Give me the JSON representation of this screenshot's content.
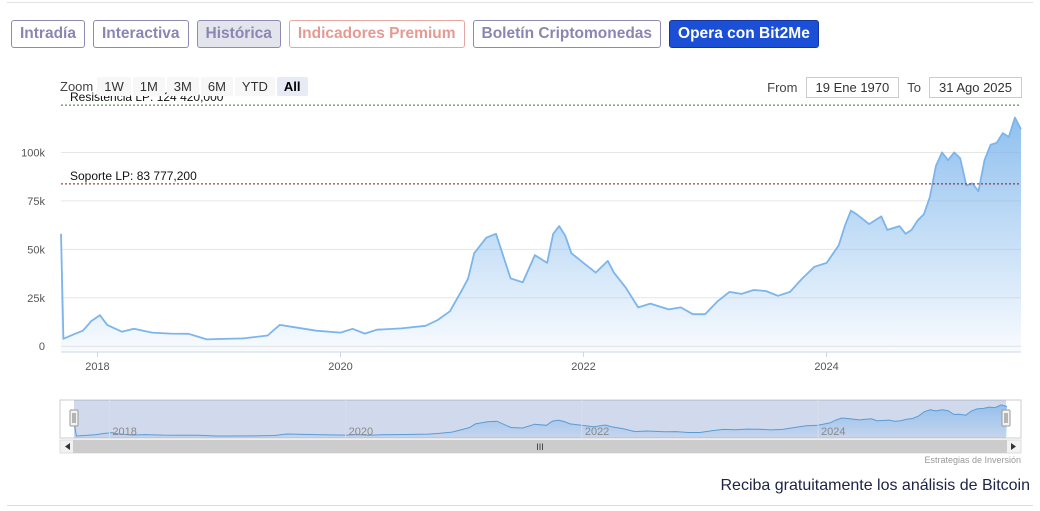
{
  "tabs": [
    {
      "label": "Intradía",
      "style": "normal"
    },
    {
      "label": "Interactiva",
      "style": "normal"
    },
    {
      "label": "Histórica",
      "style": "active"
    },
    {
      "label": "Indicadores Premium",
      "style": "premium"
    },
    {
      "label": "Boletín Criptomonedas",
      "style": "normal"
    },
    {
      "label": "Opera con Bit2Me",
      "style": "cta"
    }
  ],
  "range_selector": {
    "zoom_label": "Zoom",
    "buttons": [
      "1W",
      "1M",
      "3M",
      "6M",
      "YTD",
      "All"
    ],
    "selected": "All",
    "from_label": "From",
    "from_value": "19 Ene 1970",
    "to_label": "To",
    "to_value": "31 Ago 2025"
  },
  "credits": "Estrategias de Inversión",
  "promo_text": "Reciba gratuitamente los análisis de Bitcoin",
  "colors": {
    "line": "#7cb5ec",
    "resistance": "#2a7a2a",
    "support": "#8b1a1a",
    "cta": "#1a4fd6"
  },
  "chart_data": {
    "type": "area",
    "x_axis": {
      "ticks": [
        "2018",
        "2020",
        "2022",
        "2024"
      ],
      "range": [
        2017.7,
        2025.6
      ]
    },
    "y_axis": {
      "ticks": [
        "0",
        "25k",
        "50k",
        "75k",
        "100k"
      ],
      "tick_values": [
        0,
        25000,
        50000,
        75000,
        100000
      ],
      "range": [
        -3000,
        125000
      ]
    },
    "grid": true,
    "series": [
      {
        "x": [
          2017.7,
          2017.72,
          2017.8,
          2017.88,
          2017.95,
          2018.02,
          2018.08,
          2018.2,
          2018.3,
          2018.45,
          2018.6,
          2018.75,
          2018.9,
          2019.0,
          2019.2,
          2019.4,
          2019.5,
          2019.6,
          2019.8,
          2020.0,
          2020.1,
          2020.2,
          2020.3,
          2020.5,
          2020.7,
          2020.8,
          2020.9,
          2021.0,
          2021.05,
          2021.1,
          2021.2,
          2021.28,
          2021.4,
          2021.5,
          2021.55,
          2021.6,
          2021.7,
          2021.75,
          2021.8,
          2021.85,
          2021.9,
          2022.0,
          2022.1,
          2022.2,
          2022.25,
          2022.35,
          2022.45,
          2022.55,
          2022.7,
          2022.8,
          2022.9,
          2023.0,
          2023.1,
          2023.2,
          2023.3,
          2023.4,
          2023.5,
          2023.6,
          2023.7,
          2023.8,
          2023.9,
          2024.0,
          2024.1,
          2024.15,
          2024.2,
          2024.25,
          2024.35,
          2024.45,
          2024.5,
          2024.6,
          2024.65,
          2024.7,
          2024.75,
          2024.8,
          2024.85,
          2024.9,
          2024.95,
          2025.0,
          2025.05,
          2025.1,
          2025.15,
          2025.2,
          2025.25,
          2025.3,
          2025.35,
          2025.4,
          2025.45,
          2025.5,
          2025.55,
          2025.6
        ],
        "y": [
          58000,
          3800,
          6000,
          8000,
          13000,
          16000,
          11000,
          7500,
          9000,
          7000,
          6500,
          6400,
          3500,
          3700,
          4000,
          5500,
          11000,
          10000,
          8000,
          7000,
          9000,
          6500,
          8500,
          9200,
          10500,
          13500,
          18000,
          29000,
          35000,
          48000,
          56000,
          58000,
          35000,
          33000,
          40000,
          47000,
          43000,
          58000,
          62000,
          57000,
          48000,
          43000,
          38000,
          44000,
          38000,
          30000,
          20000,
          22000,
          19000,
          20000,
          16500,
          16500,
          23000,
          28000,
          27000,
          29000,
          28500,
          26000,
          28000,
          35000,
          41000,
          43000,
          52000,
          62000,
          70000,
          68000,
          63000,
          67000,
          60000,
          62000,
          58000,
          60000,
          65000,
          68000,
          77000,
          93000,
          100000,
          96000,
          100000,
          97000,
          83000,
          84000,
          80000,
          96000,
          104000,
          105000,
          110000,
          108000,
          118000,
          112000
        ]
      }
    ],
    "lines": [
      {
        "label": "Resistencia LP: 124 420,000",
        "value": 124420
      },
      {
        "label": "Soporte LP: 83 777,200",
        "value": 83777.2
      }
    ],
    "navigator": {
      "ticks": [
        "2018",
        "2020",
        "2022",
        "2024"
      ],
      "scrollbar_grip": "III"
    }
  }
}
